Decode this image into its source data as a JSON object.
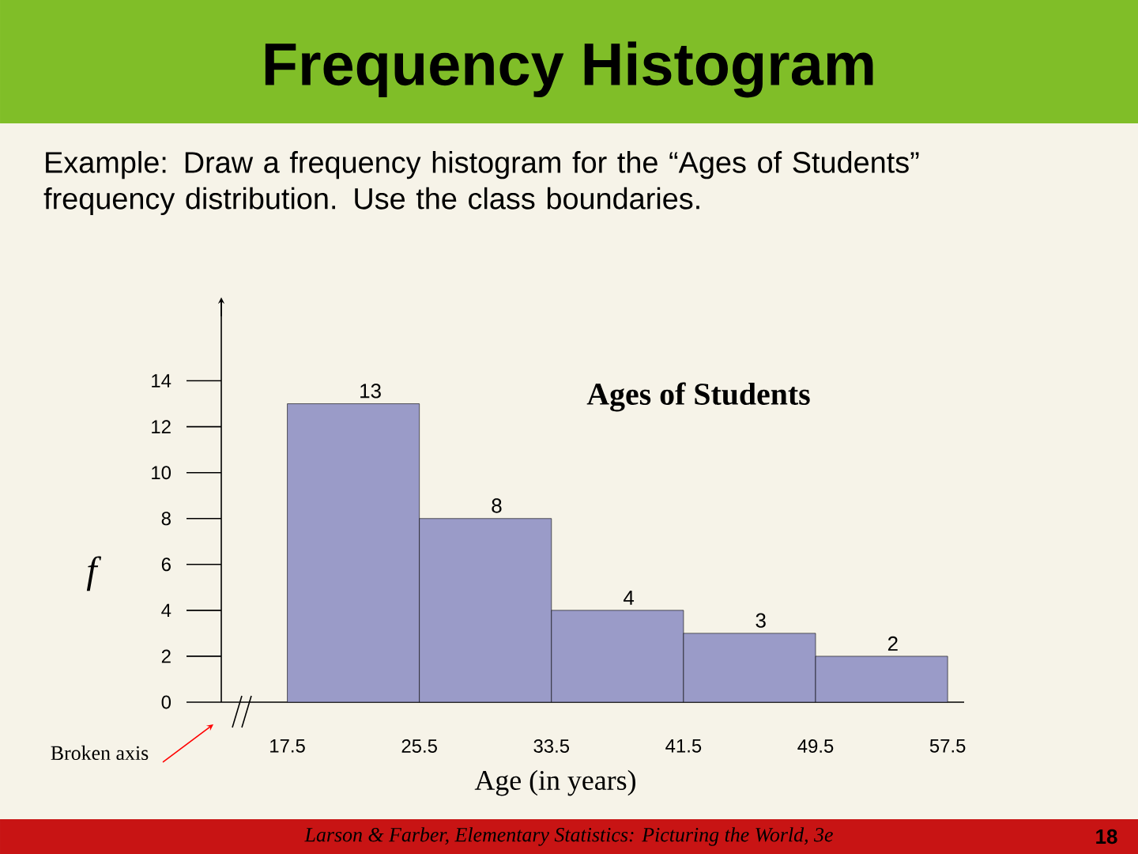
{
  "chart_data": {
    "type": "histogram",
    "title": "Frequency Histogram",
    "subtitle": "Example: Draw a frequency histogram for the “Ages of Students” frequency distribution.  Use the class boundaries.",
    "xlabel": "Age (in years)",
    "ylabel": "f",
    "bins": [
      17.5,
      25.5,
      33.5,
      41.5,
      49.5,
      57.5
    ],
    "values": [
      13,
      8,
      4,
      3,
      2
    ],
    "color": "#9a9bc8",
    "xlim": [
      13.5,
      58.5
    ],
    "xticks": [
      17.5,
      25.5,
      33.5,
      41.5,
      49.5,
      57.5
    ],
    "ylim": [
      0,
      17.5
    ],
    "yticks": [
      0,
      2,
      4,
      6,
      8,
      10,
      12,
      14
    ],
    "data_labels": true,
    "grid": false,
    "annotations": [
      "Ages of Students",
      "Broken axis",
      "Larson & Farber, Elementary Statistics: Picturing the World, 3e",
      "18"
    ]
  }
}
